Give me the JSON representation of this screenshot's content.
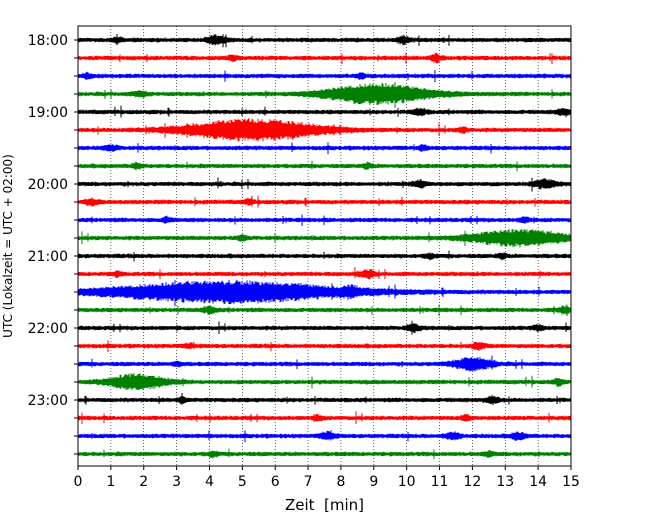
{
  "chart_data": {
    "type": "line",
    "title": "",
    "xlabel": "Zeit  [min]",
    "ylabel": "UTC (Lokalzeit = UTC + 02:00)",
    "xlim": [
      0,
      15
    ],
    "x_ticks": [
      0,
      1,
      2,
      3,
      4,
      5,
      6,
      7,
      8,
      9,
      10,
      11,
      12,
      13,
      14,
      15
    ],
    "x_tick_labels": [
      "0",
      "1",
      "2",
      "3",
      "4",
      "5",
      "6",
      "7",
      "8",
      "9",
      "10",
      "11",
      "12",
      "13",
      "14",
      "15"
    ],
    "y_ticks": [
      "18:00",
      "18:15",
      "18:30",
      "18:45",
      "19:00",
      "19:15",
      "19:30",
      "19:45",
      "20:00",
      "20:15",
      "20:30",
      "20:45",
      "21:00",
      "21:15",
      "21:30",
      "21:45",
      "22:00",
      "22:15",
      "22:30",
      "22:45",
      "23:00",
      "23:15",
      "23:30",
      "23:45"
    ],
    "y_tick_labels": [
      "18:00",
      "19:00",
      "20:00",
      "21:00",
      "22:00",
      "23:00"
    ],
    "ylim": [
      "18:00",
      "23:45"
    ],
    "grid": "vertical dotted lines at each minute",
    "legend": "none",
    "colors_cycle": [
      "#000000",
      "#ff0000",
      "#0000ff",
      "#008000"
    ],
    "series": [
      {
        "start": "18:00",
        "color": "#000000",
        "events": [
          {
            "t": 4.2,
            "amp": 0.5,
            "dur": 0.4
          },
          {
            "t": 9.9,
            "amp": 0.4,
            "dur": 0.3
          },
          {
            "t": 1.2,
            "amp": 0.3,
            "dur": 0.2
          }
        ]
      },
      {
        "start": "18:15",
        "color": "#ff0000",
        "events": [
          {
            "t": 4.7,
            "amp": 0.3,
            "dur": 0.2
          },
          {
            "t": 10.9,
            "amp": 0.5,
            "dur": 0.2
          }
        ]
      },
      {
        "start": "18:30",
        "color": "#0000ff",
        "events": [
          {
            "t": 0.3,
            "amp": 0.3,
            "dur": 0.2
          },
          {
            "t": 8.6,
            "amp": 0.3,
            "dur": 0.2
          }
        ]
      },
      {
        "start": "18:45",
        "color": "#008000",
        "events": [
          {
            "t": 9.1,
            "amp": 1.3,
            "dur": 2.2
          },
          {
            "t": 1.9,
            "amp": 0.3,
            "dur": 0.3
          }
        ]
      },
      {
        "start": "19:00",
        "color": "#000000",
        "events": [
          {
            "t": 10.4,
            "amp": 0.35,
            "dur": 0.3
          },
          {
            "t": 14.8,
            "amp": 0.4,
            "dur": 0.3
          }
        ]
      },
      {
        "start": "19:15",
        "color": "#ff0000",
        "events": [
          {
            "t": 5.3,
            "amp": 1.4,
            "dur": 2.8
          },
          {
            "t": 11.7,
            "amp": 0.3,
            "dur": 0.2
          }
        ]
      },
      {
        "start": "19:30",
        "color": "#0000ff",
        "events": [
          {
            "t": 1.0,
            "amp": 0.3,
            "dur": 0.3
          },
          {
            "t": 10.5,
            "amp": 0.25,
            "dur": 0.2
          }
        ]
      },
      {
        "start": "19:45",
        "color": "#008000",
        "events": [
          {
            "t": 1.8,
            "amp": 0.35,
            "dur": 0.2
          },
          {
            "t": 8.8,
            "amp": 0.3,
            "dur": 0.2
          }
        ]
      },
      {
        "start": "20:00",
        "color": "#000000",
        "events": [
          {
            "t": 10.4,
            "amp": 0.45,
            "dur": 0.3
          },
          {
            "t": 14.2,
            "amp": 0.5,
            "dur": 0.5
          }
        ]
      },
      {
        "start": "20:15",
        "color": "#ff0000",
        "events": [
          {
            "t": 0.4,
            "amp": 0.3,
            "dur": 0.3
          },
          {
            "t": 5.2,
            "amp": 0.3,
            "dur": 0.2
          }
        ]
      },
      {
        "start": "20:30",
        "color": "#0000ff",
        "events": [
          {
            "t": 2.7,
            "amp": 0.3,
            "dur": 0.2
          },
          {
            "t": 13.6,
            "amp": 0.3,
            "dur": 0.2
          }
        ]
      },
      {
        "start": "20:45",
        "color": "#008000",
        "events": [
          {
            "t": 13.4,
            "amp": 1.0,
            "dur": 2.0
          },
          {
            "t": 5.0,
            "amp": 0.3,
            "dur": 0.2
          }
        ]
      },
      {
        "start": "21:00",
        "color": "#000000",
        "events": [
          {
            "t": 10.7,
            "amp": 0.3,
            "dur": 0.2
          },
          {
            "t": 12.9,
            "amp": 0.3,
            "dur": 0.2
          }
        ]
      },
      {
        "start": "21:15",
        "color": "#ff0000",
        "events": [
          {
            "t": 8.8,
            "amp": 0.5,
            "dur": 0.3
          },
          {
            "t": 1.2,
            "amp": 0.25,
            "dur": 0.2
          }
        ]
      },
      {
        "start": "21:30",
        "color": "#0000ff",
        "events": [
          {
            "t": 4.5,
            "amp": 1.4,
            "dur": 5.0
          },
          {
            "t": 8.3,
            "amp": 0.4,
            "dur": 0.3
          }
        ]
      },
      {
        "start": "21:45",
        "color": "#008000",
        "events": [
          {
            "t": 4.0,
            "amp": 0.35,
            "dur": 0.3
          },
          {
            "t": 14.8,
            "amp": 0.35,
            "dur": 0.3
          }
        ]
      },
      {
        "start": "22:00",
        "color": "#000000",
        "events": [
          {
            "t": 10.2,
            "amp": 0.4,
            "dur": 0.3
          },
          {
            "t": 14.0,
            "amp": 0.35,
            "dur": 0.2
          }
        ]
      },
      {
        "start": "22:15",
        "color": "#ff0000",
        "events": [
          {
            "t": 12.2,
            "amp": 0.35,
            "dur": 0.3
          },
          {
            "t": 3.4,
            "amp": 0.25,
            "dur": 0.2
          }
        ]
      },
      {
        "start": "22:30",
        "color": "#0000ff",
        "events": [
          {
            "t": 12.0,
            "amp": 0.8,
            "dur": 0.8
          },
          {
            "t": 3.0,
            "amp": 0.25,
            "dur": 0.2
          }
        ]
      },
      {
        "start": "22:45",
        "color": "#008000",
        "events": [
          {
            "t": 1.8,
            "amp": 1.0,
            "dur": 1.2
          },
          {
            "t": 14.6,
            "amp": 0.4,
            "dur": 0.2
          }
        ]
      },
      {
        "start": "23:00",
        "color": "#000000",
        "events": [
          {
            "t": 12.6,
            "amp": 0.4,
            "dur": 0.3
          },
          {
            "t": 3.2,
            "amp": 0.3,
            "dur": 0.2
          }
        ]
      },
      {
        "start": "23:15",
        "color": "#ff0000",
        "events": [
          {
            "t": 7.3,
            "amp": 0.3,
            "dur": 0.2
          },
          {
            "t": 11.8,
            "amp": 0.3,
            "dur": 0.2
          }
        ]
      },
      {
        "start": "23:30",
        "color": "#0000ff",
        "events": [
          {
            "t": 7.6,
            "amp": 0.45,
            "dur": 0.3
          },
          {
            "t": 11.4,
            "amp": 0.45,
            "dur": 0.3
          },
          {
            "t": 13.4,
            "amp": 0.4,
            "dur": 0.3
          }
        ]
      },
      {
        "start": "23:45",
        "color": "#008000",
        "events": [
          {
            "t": 4.1,
            "amp": 0.3,
            "dur": 0.2
          },
          {
            "t": 12.5,
            "amp": 0.3,
            "dur": 0.2
          }
        ]
      }
    ]
  }
}
